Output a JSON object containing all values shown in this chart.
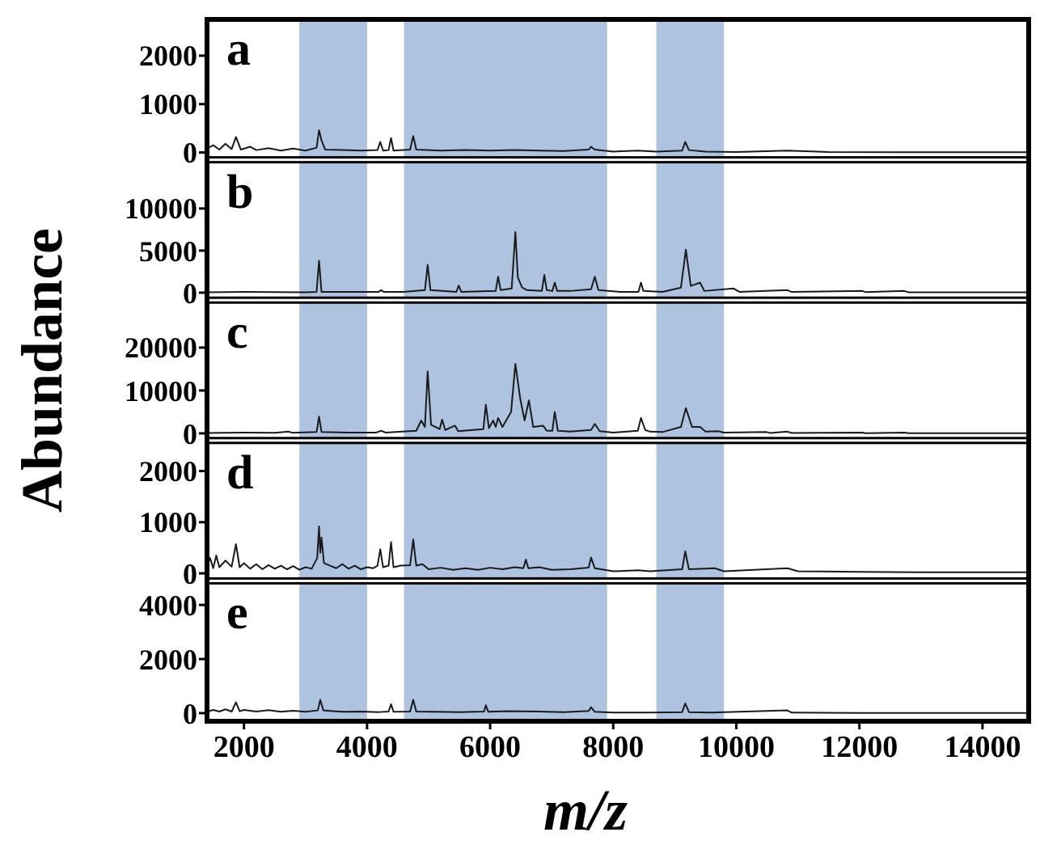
{
  "chart_data": [
    {
      "type": "line",
      "title": "a",
      "tick_labels": "y",
      "xlim": [
        1400,
        14750
      ],
      "ylim": [
        -100,
        2750
      ],
      "yticks": [
        0,
        1000,
        2000
      ],
      "bands": [
        {
          "axis": "x",
          "from": 2900,
          "to": 4000,
          "color": "#adc3df"
        },
        {
          "axis": "x",
          "from": 4600,
          "to": 7900,
          "color": "#adc3df"
        },
        {
          "axis": "x",
          "from": 8700,
          "to": 9800,
          "color": "#adc3df"
        }
      ],
      "x": [
        1400,
        1500,
        1600,
        1700,
        1800,
        1870,
        1950,
        2100,
        2200,
        2400,
        2600,
        2800,
        3000,
        3180,
        3220,
        3260,
        3320,
        3600,
        3900,
        4170,
        4215,
        4260,
        4350,
        4390,
        4430,
        4700,
        4750,
        4800,
        5200,
        5600,
        6000,
        6400,
        6800,
        7200,
        7600,
        7640,
        7700,
        8000,
        8400,
        8700,
        9120,
        9170,
        9230,
        9500,
        10000,
        10830,
        11500,
        12500,
        14750
      ],
      "series": [
        {
          "color": "#1a1a1a",
          "values": [
            80,
            150,
            60,
            180,
            70,
            320,
            60,
            120,
            50,
            90,
            40,
            80,
            40,
            100,
            460,
            250,
            60,
            50,
            40,
            50,
            220,
            40,
            50,
            300,
            40,
            60,
            340,
            60,
            40,
            50,
            40,
            50,
            40,
            30,
            60,
            120,
            60,
            20,
            40,
            20,
            40,
            220,
            50,
            20,
            10,
            40,
            10,
            5,
            5
          ]
        }
      ]
    },
    {
      "type": "line",
      "title": "b",
      "tick_labels": "y",
      "xlim": [
        1400,
        14750
      ],
      "ylim": [
        -600,
        15500
      ],
      "yticks": [
        0,
        5000,
        10000
      ],
      "bands": [
        {
          "axis": "x",
          "from": 2900,
          "to": 4000,
          "color": "#adc3df"
        },
        {
          "axis": "x",
          "from": 4600,
          "to": 7900,
          "color": "#adc3df"
        },
        {
          "axis": "x",
          "from": 8700,
          "to": 9800,
          "color": "#adc3df"
        }
      ],
      "x": [
        1400,
        2000,
        2500,
        3000,
        3180,
        3220,
        3260,
        3600,
        4190,
        4230,
        4270,
        4600,
        4940,
        4985,
        5030,
        5450,
        5490,
        5530,
        6090,
        6130,
        6170,
        6350,
        6410,
        6450,
        6520,
        6600,
        6840,
        6880,
        6920,
        7010,
        7050,
        7090,
        7300,
        7640,
        7700,
        7760,
        8100,
        8410,
        8450,
        8490,
        8800,
        9100,
        9180,
        9260,
        9410,
        9480,
        9950,
        10050,
        10830,
        10900,
        12050,
        12100,
        12730,
        12800,
        14750
      ],
      "series": [
        {
          "color": "#1a1a1a",
          "values": [
            50,
            80,
            60,
            40,
            100,
            3800,
            100,
            80,
            100,
            300,
            100,
            100,
            300,
            3300,
            300,
            100,
            850,
            100,
            200,
            1900,
            300,
            500,
            7200,
            1800,
            600,
            300,
            200,
            2100,
            300,
            200,
            1200,
            200,
            200,
            400,
            1900,
            300,
            100,
            100,
            1200,
            200,
            100,
            600,
            5100,
            800,
            1200,
            200,
            500,
            100,
            300,
            80,
            200,
            60,
            200,
            50,
            40
          ]
        }
      ]
    },
    {
      "type": "line",
      "title": "c",
      "ylabel": "Abundance",
      "tick_labels": "y",
      "xlim": [
        1400,
        14750
      ],
      "ylim": [
        -1100,
        30500
      ],
      "yticks": [
        0,
        10000,
        20000
      ],
      "bands": [
        {
          "axis": "x",
          "from": 2900,
          "to": 4000,
          "color": "#adc3df"
        },
        {
          "axis": "x",
          "from": 4600,
          "to": 7900,
          "color": "#adc3df"
        },
        {
          "axis": "x",
          "from": 8700,
          "to": 9800,
          "color": "#adc3df"
        }
      ],
      "x": [
        1400,
        2000,
        2500,
        2730,
        2780,
        3180,
        3220,
        3260,
        3700,
        4150,
        4230,
        4300,
        4800,
        4880,
        4940,
        4985,
        5040,
        5180,
        5220,
        5270,
        5430,
        5480,
        5890,
        5930,
        5980,
        6050,
        6090,
        6130,
        6200,
        6340,
        6410,
        6490,
        6560,
        6630,
        6700,
        6860,
        6920,
        7010,
        7050,
        7100,
        7300,
        7640,
        7700,
        7780,
        8000,
        8400,
        8450,
        8520,
        8600,
        8800,
        9100,
        9180,
        9280,
        9410,
        9500,
        9700,
        9800,
        10490,
        10550,
        10830,
        10900,
        12050,
        12100,
        12730,
        12800,
        14750
      ],
      "series": [
        {
          "color": "#1a1a1a",
          "values": [
            100,
            200,
            150,
            400,
            150,
            300,
            3900,
            300,
            200,
            200,
            600,
            200,
            600,
            3000,
            1500,
            14400,
            2000,
            1000,
            3200,
            800,
            1800,
            500,
            1000,
            6700,
            1200,
            3000,
            1500,
            3600,
            1500,
            5000,
            16200,
            8000,
            3000,
            7700,
            1500,
            1800,
            600,
            600,
            5000,
            600,
            400,
            800,
            2200,
            500,
            200,
            600,
            3600,
            800,
            400,
            300,
            1500,
            5900,
            1500,
            1500,
            400,
            500,
            200,
            300,
            100,
            400,
            100,
            200,
            50,
            200,
            50,
            50
          ]
        }
      ]
    },
    {
      "type": "line",
      "title": "d",
      "tick_labels": "y",
      "xlim": [
        1400,
        14750
      ],
      "ylim": [
        -100,
        2550
      ],
      "yticks": [
        0,
        1000,
        2000
      ],
      "bands": [
        {
          "axis": "x",
          "from": 2900,
          "to": 4000,
          "color": "#adc3df"
        },
        {
          "axis": "x",
          "from": 4600,
          "to": 7900,
          "color": "#adc3df"
        },
        {
          "axis": "x",
          "from": 8700,
          "to": 9800,
          "color": "#adc3df"
        }
      ],
      "x": [
        1400,
        1450,
        1500,
        1550,
        1600,
        1700,
        1800,
        1870,
        1930,
        2000,
        2100,
        2200,
        2300,
        2400,
        2500,
        2600,
        2700,
        2800,
        2900,
        3000,
        3100,
        3190,
        3220,
        3240,
        3260,
        3300,
        3400,
        3500,
        3600,
        3700,
        3800,
        3900,
        4000,
        4100,
        4170,
        4215,
        4260,
        4350,
        4390,
        4430,
        4550,
        4700,
        4750,
        4800,
        4900,
        5000,
        5200,
        5400,
        5600,
        5800,
        6000,
        6200,
        6400,
        6540,
        6580,
        6620,
        6800,
        7000,
        7300,
        7600,
        7640,
        7700,
        8000,
        8400,
        8600,
        9120,
        9170,
        9230,
        9650,
        9800,
        10830,
        11000,
        12000,
        13000,
        14750
      ],
      "series": [
        {
          "color": "#1a1a1a",
          "values": [
            150,
            300,
            100,
            350,
            120,
            250,
            130,
            570,
            120,
            200,
            90,
            180,
            80,
            160,
            90,
            150,
            80,
            140,
            70,
            120,
            90,
            300,
            920,
            400,
            700,
            200,
            150,
            100,
            180,
            90,
            150,
            80,
            120,
            100,
            150,
            470,
            120,
            150,
            610,
            120,
            150,
            160,
            660,
            150,
            180,
            80,
            110,
            70,
            100,
            70,
            110,
            80,
            120,
            100,
            270,
            100,
            120,
            70,
            80,
            110,
            310,
            100,
            40,
            60,
            40,
            80,
            430,
            80,
            100,
            40,
            100,
            40,
            30,
            20,
            20
          ]
        }
      ]
    },
    {
      "type": "line",
      "title": "e",
      "xlabel": "m/z",
      "xlim": [
        1400,
        14750
      ],
      "xticks": [
        2000,
        4000,
        6000,
        8000,
        10000,
        12000,
        14000
      ],
      "ylim": [
        -300,
        4800
      ],
      "yticks": [
        0,
        2000,
        4000
      ],
      "bands": [
        {
          "axis": "x",
          "from": 2900,
          "to": 4000,
          "color": "#adc3df"
        },
        {
          "axis": "x",
          "from": 4600,
          "to": 7900,
          "color": "#adc3df"
        },
        {
          "axis": "x",
          "from": 8700,
          "to": 9800,
          "color": "#adc3df"
        }
      ],
      "x": [
        1400,
        1500,
        1600,
        1700,
        1800,
        1870,
        1930,
        2000,
        2200,
        2400,
        2600,
        2800,
        3000,
        3200,
        3240,
        3290,
        3400,
        3600,
        3900,
        4200,
        4350,
        4390,
        4430,
        4700,
        4750,
        4800,
        5100,
        5500,
        5900,
        5930,
        5970,
        6300,
        6800,
        7200,
        7600,
        7640,
        7700,
        8000,
        8600,
        9120,
        9170,
        9230,
        9600,
        10830,
        10900,
        12000,
        14750
      ],
      "series": [
        {
          "color": "#1a1a1a",
          "values": [
            50,
            120,
            60,
            140,
            60,
            400,
            70,
            120,
            60,
            110,
            50,
            90,
            50,
            100,
            490,
            100,
            80,
            50,
            60,
            40,
            60,
            330,
            50,
            60,
            490,
            60,
            50,
            40,
            60,
            290,
            50,
            70,
            60,
            40,
            80,
            220,
            50,
            20,
            20,
            40,
            360,
            40,
            20,
            100,
            20,
            10,
            5
          ]
        }
      ]
    }
  ]
}
